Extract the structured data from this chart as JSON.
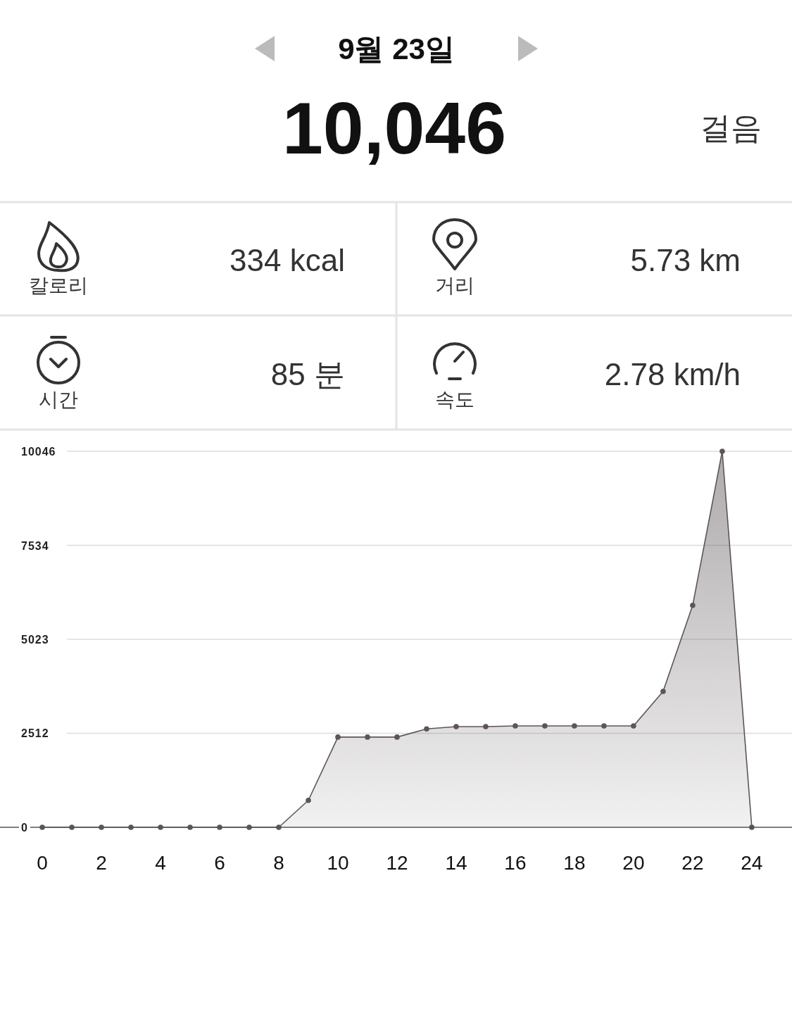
{
  "chart_data": [
    {
      "type": "other",
      "title": "9월 23일",
      "annotations": [
        "10,046",
        "걸음",
        "칼로리",
        "334 kcal",
        "거리",
        "5.73 km",
        "시간",
        "85 분",
        "속도",
        "2.78 km/h"
      ]
    },
    {
      "type": "area",
      "x": [
        0,
        1,
        2,
        3,
        4,
        5,
        6,
        7,
        8,
        9,
        10,
        11,
        12,
        13,
        14,
        15,
        16,
        17,
        18,
        19,
        20,
        21,
        22,
        23,
        24
      ],
      "series": [
        {
          "color": "#5d5558",
          "values": [
            0,
            0,
            0,
            0,
            0,
            0,
            0,
            0,
            0,
            720,
            2410,
            2410,
            2410,
            2630,
            2690,
            2690,
            2710,
            2710,
            2710,
            2710,
            2710,
            3630,
            5930,
            10046,
            0
          ]
        }
      ],
      "xlim": [
        -1.43,
        25.36
      ],
      "xticks": [
        0,
        2,
        4,
        6,
        8,
        10,
        12,
        14,
        16,
        18,
        20,
        22,
        24
      ],
      "ylim": [
        0,
        10046
      ],
      "yticks": [
        0,
        2512,
        5023,
        7534,
        10046
      ],
      "grid": "y",
      "marker": "circle"
    }
  ]
}
